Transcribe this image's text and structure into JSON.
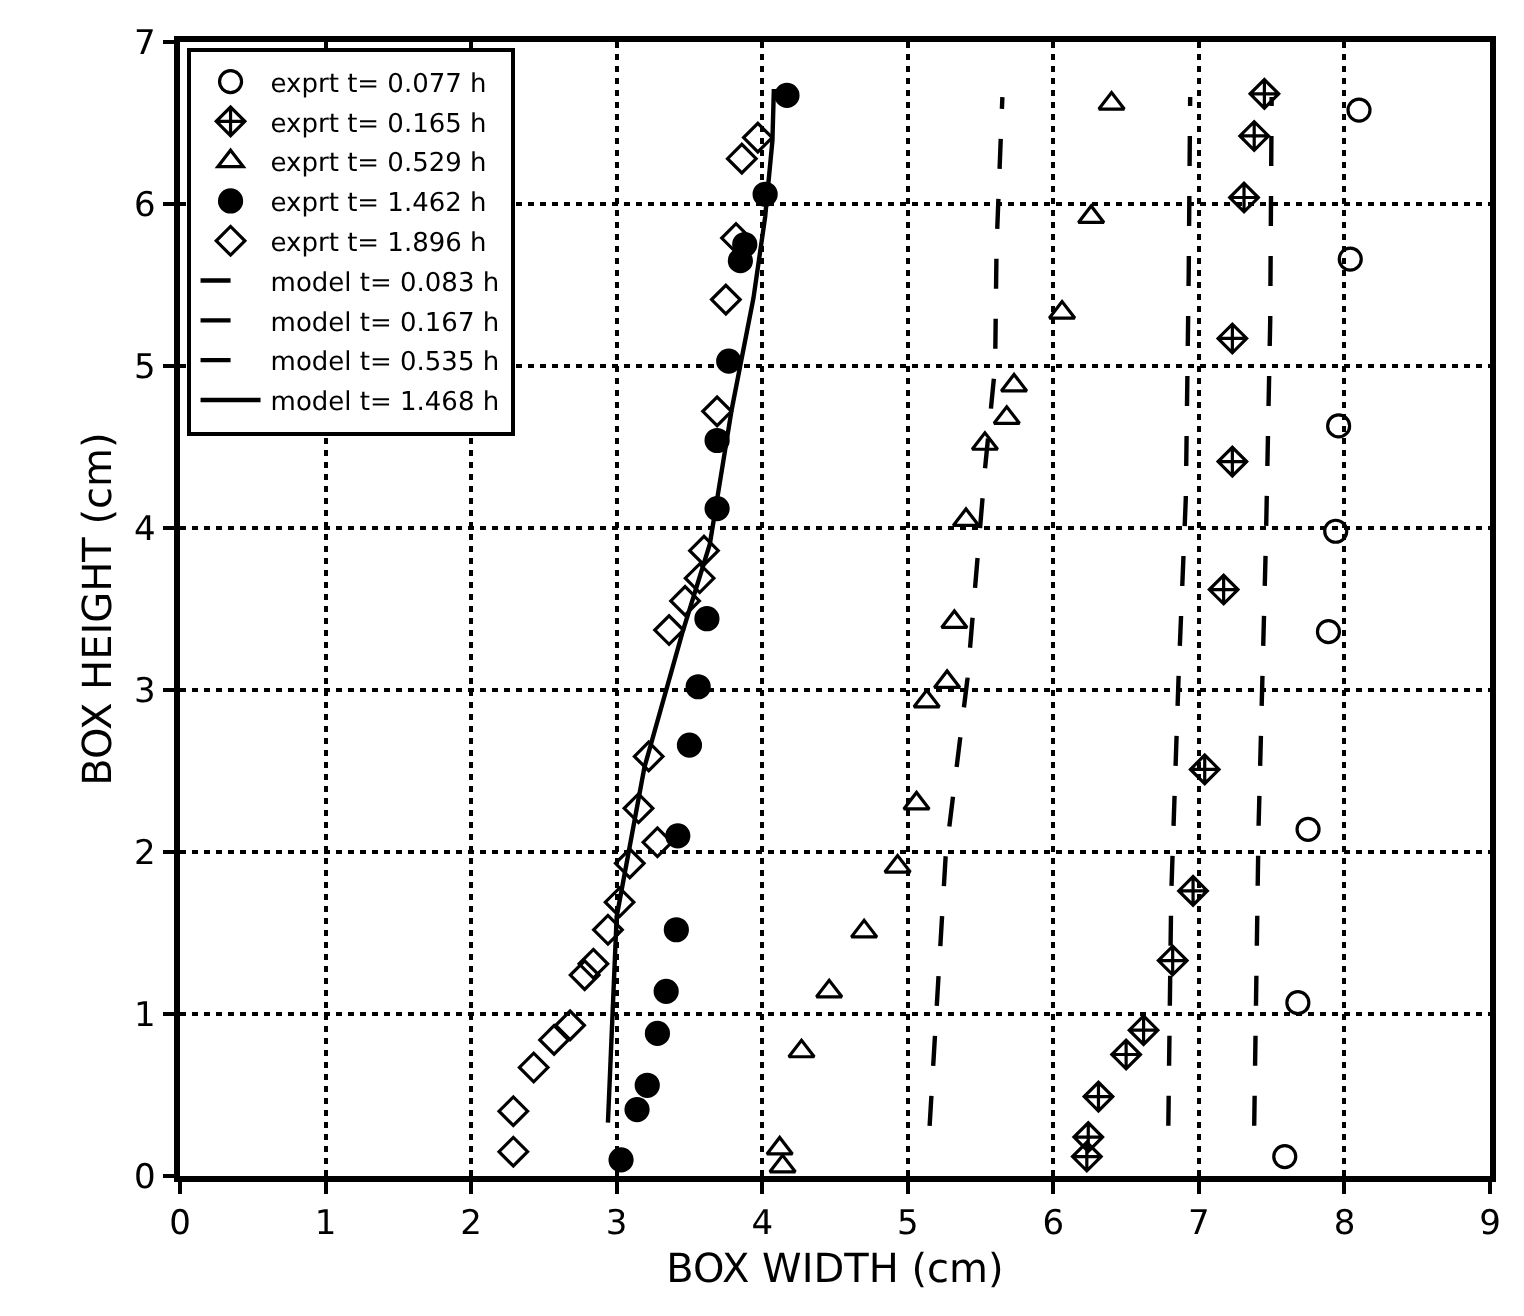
{
  "chart_data": {
    "type": "scatter",
    "xlabel": "BOX WIDTH (cm)",
    "ylabel": "BOX HEIGHT (cm)",
    "xlim": [
      0,
      9
    ],
    "ylim": [
      0,
      7
    ],
    "xticks": [
      0,
      1,
      2,
      3,
      4,
      5,
      6,
      7,
      8,
      9
    ],
    "yticks": [
      0,
      1,
      2,
      3,
      4,
      5,
      6,
      7
    ],
    "grid": true,
    "legend": "top left",
    "series": [
      {
        "name": "exprt t= 0.077 h",
        "marker": "circle-open",
        "color": "#000000",
        "x": [
          8.1,
          8.04,
          7.96,
          7.94,
          7.89,
          7.75,
          7.68,
          7.59
        ],
        "values": [
          6.58,
          5.66,
          4.63,
          3.98,
          3.36,
          2.14,
          1.07,
          0.12
        ]
      },
      {
        "name": "exprt t= 0.165 h",
        "marker": "diamond-cross-open",
        "color": "#000000",
        "x": [
          7.45,
          7.38,
          7.31,
          7.23,
          7.23,
          7.17,
          7.04,
          6.96,
          6.82,
          6.62,
          6.5,
          6.31,
          6.24,
          6.23
        ],
        "values": [
          6.68,
          6.42,
          6.04,
          5.17,
          4.41,
          3.62,
          2.51,
          1.76,
          1.33,
          0.9,
          0.75,
          0.49,
          0.24,
          0.12
        ]
      },
      {
        "name": "exprt t= 0.529 h",
        "marker": "triangle-up-open",
        "color": "#000000",
        "x": [
          6.4,
          6.26,
          6.06,
          5.73,
          5.68,
          5.53,
          5.4,
          5.32,
          5.27,
          5.13,
          5.06,
          4.93,
          4.7,
          4.46,
          4.27,
          4.12,
          4.14
        ],
        "values": [
          6.62,
          5.92,
          5.33,
          4.88,
          4.68,
          4.52,
          4.05,
          3.42,
          3.05,
          2.93,
          2.3,
          1.91,
          1.51,
          1.14,
          0.77,
          0.17,
          0.06
        ]
      },
      {
        "name": "exprt t= 1.462 h",
        "marker": "circle",
        "color": "#000000",
        "x": [
          4.17,
          4.02,
          3.88,
          3.85,
          3.77,
          3.69,
          3.69,
          3.62,
          3.56,
          3.5,
          3.42,
          3.41,
          3.34,
          3.28,
          3.21,
          3.14,
          3.03
        ],
        "values": [
          6.67,
          6.06,
          5.75,
          5.65,
          5.03,
          4.54,
          4.12,
          3.44,
          3.02,
          2.66,
          2.1,
          1.52,
          1.14,
          0.88,
          0.56,
          0.41,
          0.1
        ]
      },
      {
        "name": "exprt t= 1.896 h",
        "marker": "diamond-open",
        "color": "#000000",
        "x": [
          3.97,
          3.86,
          3.82,
          3.75,
          3.69,
          3.6,
          3.57,
          3.47,
          3.36,
          3.22,
          3.15,
          3.28,
          3.09,
          3.02,
          2.94,
          2.84,
          2.78,
          2.68,
          2.57,
          2.43,
          2.29,
          2.29
        ],
        "values": [
          6.41,
          6.28,
          5.79,
          5.41,
          4.72,
          3.86,
          3.69,
          3.55,
          3.37,
          2.59,
          2.27,
          2.06,
          1.93,
          1.69,
          1.52,
          1.31,
          1.24,
          0.93,
          0.84,
          0.67,
          0.4,
          0.15
        ]
      },
      {
        "name": "model t= 0.083 h",
        "type": "line",
        "marker": "none",
        "line_style": "dashed",
        "color": "#000000",
        "x": [
          7.38,
          7.41,
          7.46,
          7.49,
          7.5
        ],
        "values": [
          0.31,
          2.15,
          3.9,
          5.28,
          6.66
        ]
      },
      {
        "name": "model t= 0.167 h",
        "type": "line",
        "marker": "none",
        "line_style": "dashed",
        "color": "#000000",
        "x": [
          6.79,
          6.81,
          6.86,
          6.91,
          6.93,
          6.94
        ],
        "values": [
          0.31,
          1.74,
          3.07,
          4.18,
          5.56,
          6.66
        ]
      },
      {
        "name": "model t= 0.535 h",
        "type": "line",
        "marker": "none",
        "line_style": "dashed",
        "color": "#000000",
        "x": [
          5.15,
          5.26,
          5.41,
          5.53,
          5.6,
          5.61,
          5.65
        ],
        "values": [
          0.31,
          1.97,
          3.07,
          4.36,
          5.0,
          5.74,
          6.66
        ]
      },
      {
        "name": "model t= 1.468 h",
        "type": "line",
        "marker": "none",
        "line_style": "solid",
        "color": "#000000",
        "x": [
          2.94,
          3.0,
          3.19,
          3.45,
          3.64,
          3.79,
          3.94,
          4.02,
          4.07,
          4.08
        ],
        "values": [
          0.33,
          1.6,
          2.52,
          3.35,
          3.9,
          4.73,
          5.42,
          5.92,
          6.39,
          6.71
        ]
      }
    ]
  }
}
